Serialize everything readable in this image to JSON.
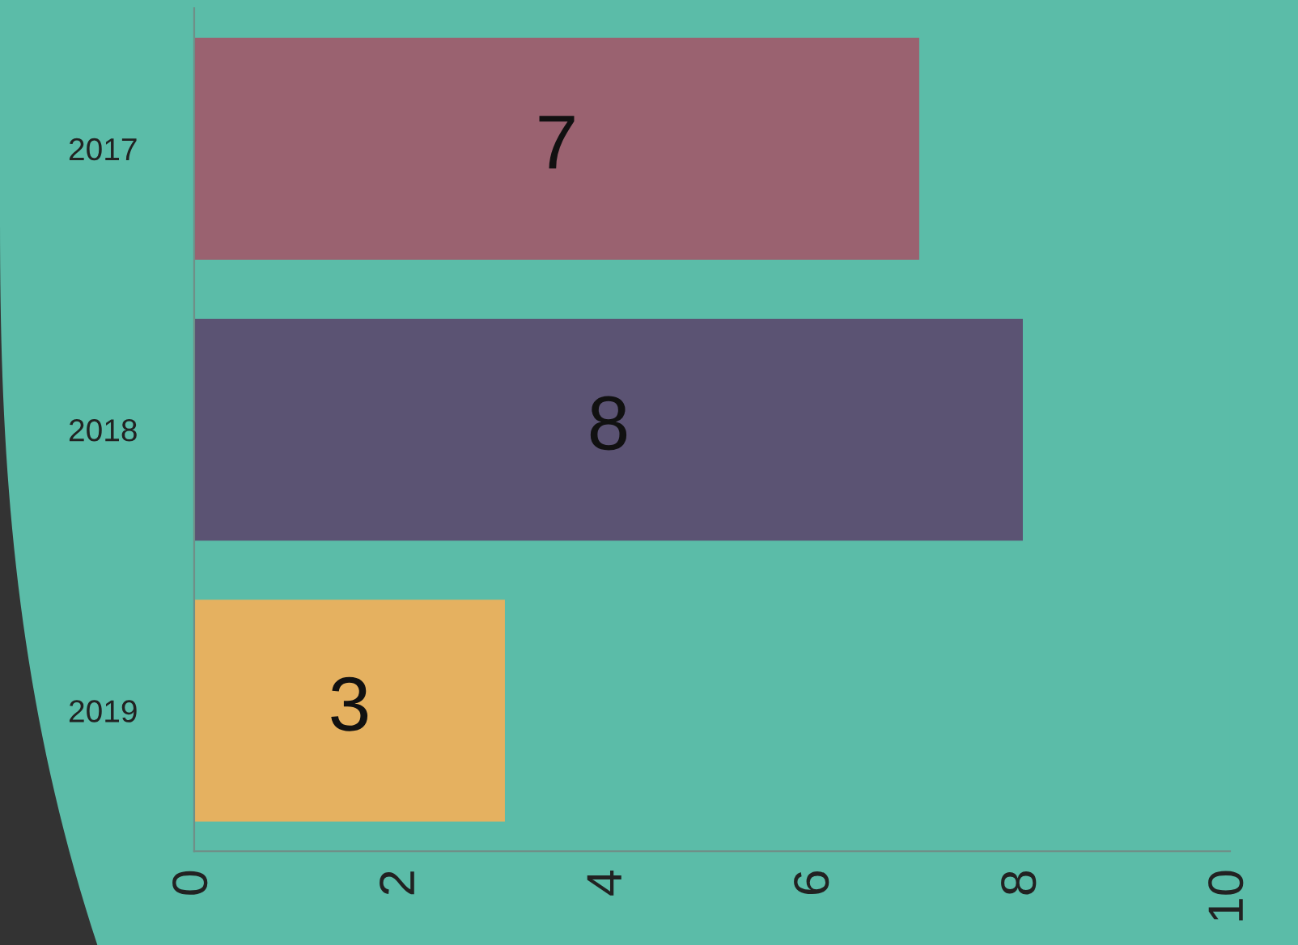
{
  "chart_data": {
    "type": "bar",
    "orientation": "horizontal",
    "categories": [
      "2017",
      "2018",
      "2019"
    ],
    "values": [
      7,
      8,
      3
    ],
    "colors": [
      "#9a6270",
      "#5b5373",
      "#e5b160"
    ],
    "xlim": [
      0,
      10
    ],
    "xticks": [
      0,
      2,
      4,
      6,
      8,
      10
    ],
    "data_labels": true,
    "grid": false,
    "legend": false
  }
}
